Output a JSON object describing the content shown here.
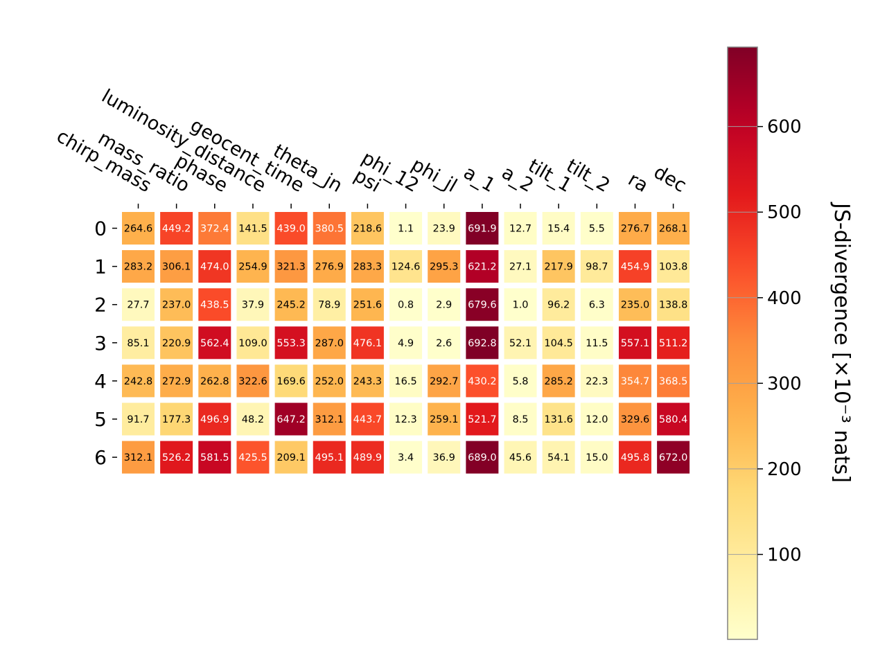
{
  "chart_data": {
    "type": "heatmap",
    "columns": [
      "chirp_mass",
      "mass_ratio",
      "phase",
      "luminosity_distance",
      "geocent_time",
      "theta_jn",
      "psi",
      "phi_12",
      "phi_jl",
      "a_1",
      "a_2",
      "tilt_1",
      "tilt_2",
      "ra",
      "dec"
    ],
    "rows": [
      "0",
      "1",
      "2",
      "3",
      "4",
      "5",
      "6"
    ],
    "values": [
      [
        264.6,
        449.2,
        372.4,
        141.5,
        439.0,
        380.5,
        218.6,
        1.1,
        23.9,
        691.9,
        12.7,
        15.4,
        5.5,
        276.7,
        268.1
      ],
      [
        283.2,
        306.1,
        474.0,
        254.9,
        321.3,
        276.9,
        283.3,
        124.6,
        295.3,
        621.2,
        27.1,
        217.9,
        98.7,
        454.9,
        103.8
      ],
      [
        27.7,
        237.0,
        438.5,
        37.9,
        245.2,
        78.9,
        251.6,
        0.8,
        2.9,
        679.6,
        1.0,
        96.2,
        6.3,
        235.0,
        138.8
      ],
      [
        85.1,
        220.9,
        562.4,
        109.0,
        553.3,
        287.0,
        476.1,
        4.9,
        2.6,
        692.8,
        52.1,
        104.5,
        11.5,
        557.1,
        511.2
      ],
      [
        242.8,
        272.9,
        262.8,
        322.6,
        169.6,
        252.0,
        243.3,
        16.5,
        292.7,
        430.2,
        5.8,
        285.2,
        22.3,
        354.7,
        368.5
      ],
      [
        91.7,
        177.3,
        496.9,
        48.2,
        647.2,
        312.1,
        443.7,
        12.3,
        259.1,
        521.7,
        8.5,
        131.6,
        12.0,
        329.6,
        580.4
      ],
      [
        312.1,
        526.2,
        581.5,
        425.5,
        209.1,
        495.1,
        489.9,
        3.4,
        36.9,
        689.0,
        45.6,
        54.1,
        15.0,
        495.8,
        672.0
      ]
    ],
    "colormap": "YlOrRd",
    "colorbar": {
      "label": "JS-divergence [×10⁻³ nats]",
      "ticks": [
        100,
        200,
        300,
        400,
        500,
        600
      ],
      "range": [
        0.8,
        692.8
      ]
    }
  }
}
